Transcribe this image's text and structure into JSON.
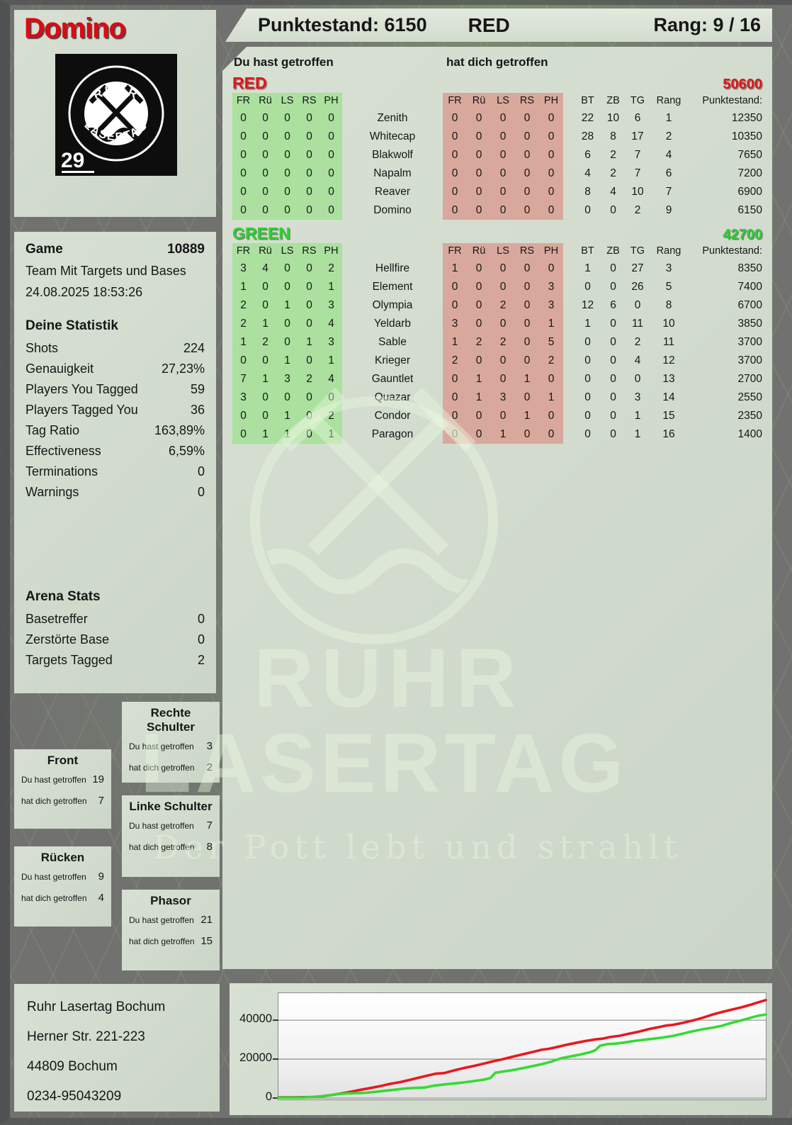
{
  "header": {
    "player_name": "Domino",
    "score_label": "Punktestand: 6150",
    "team": "RED",
    "rank_label": "Rang: 9 / 16"
  },
  "logo": {
    "arc_top": "RUHR",
    "arc_bottom": "LASERTAG",
    "badge": "29"
  },
  "game": {
    "label": "Game",
    "number": "10889",
    "mode": "Team Mit Targets und Bases",
    "datetime": "24.08.2025 18:53:26"
  },
  "your_stats": {
    "title": "Deine Statistik",
    "rows": [
      {
        "label": "Shots",
        "value": "224"
      },
      {
        "label": "Genauigkeit",
        "value": "27,23%"
      },
      {
        "label": "Players You Tagged",
        "value": "59"
      },
      {
        "label": "Players Tagged You",
        "value": "36"
      },
      {
        "label": "Tag Ratio",
        "value": "163,89%"
      },
      {
        "label": "Effectiveness",
        "value": "6,59%"
      },
      {
        "label": "Terminations",
        "value": "0"
      },
      {
        "label": "Warnings",
        "value": "0"
      }
    ]
  },
  "arena_stats": {
    "title": "Arena Stats",
    "rows": [
      {
        "label": "Basetreffer",
        "value": "0"
      },
      {
        "label": "Zerstörte Base",
        "value": "0"
      },
      {
        "label": "Targets Tagged",
        "value": "2"
      }
    ]
  },
  "zones": {
    "hit_label": "Du hast getroffen",
    "got_label": "hat dich getroffen",
    "boxes": [
      {
        "id": "front",
        "title": "Front",
        "hit": "19",
        "got": "7"
      },
      {
        "id": "ruecken",
        "title": "Rücken",
        "hit": "9",
        "got": "4"
      },
      {
        "id": "rechte-schulter",
        "title": "Rechte Schulter",
        "hit": "3",
        "got": "2"
      },
      {
        "id": "linke-schulter",
        "title": "Linke Schulter",
        "hit": "7",
        "got": "8"
      },
      {
        "id": "phasor",
        "title": "Phasor",
        "hit": "21",
        "got": "15"
      }
    ]
  },
  "score_table": {
    "hit_label": "Du hast getroffen",
    "got_label": "hat dich getroffen",
    "hit_bg": "#abe09e",
    "got_bg": "#d9a89c",
    "hit_columns": [
      "FR",
      "Rü",
      "LS",
      "RS",
      "PH"
    ],
    "got_columns": [
      "FR",
      "Rü",
      "LS",
      "RS",
      "PH"
    ],
    "stat_columns": [
      "BT",
      "ZB",
      "TG",
      "Rang",
      "Punktestand:"
    ],
    "teams": [
      {
        "name": "RED",
        "total": "50600",
        "color": "#e8121a",
        "rows": [
          {
            "player": "Zenith",
            "hit": [
              "0",
              "0",
              "0",
              "0",
              "0"
            ],
            "got": [
              "0",
              "0",
              "0",
              "0",
              "0"
            ],
            "bt": "22",
            "zb": "10",
            "tg": "6",
            "rang": "1",
            "punktestand": "12350"
          },
          {
            "player": "Whitecap",
            "hit": [
              "0",
              "0",
              "0",
              "0",
              "0"
            ],
            "got": [
              "0",
              "0",
              "0",
              "0",
              "0"
            ],
            "bt": "28",
            "zb": "8",
            "tg": "17",
            "rang": "2",
            "punktestand": "10350"
          },
          {
            "player": "Blakwolf",
            "hit": [
              "0",
              "0",
              "0",
              "0",
              "0"
            ],
            "got": [
              "0",
              "0",
              "0",
              "0",
              "0"
            ],
            "bt": "6",
            "zb": "2",
            "tg": "7",
            "rang": "4",
            "punktestand": "7650"
          },
          {
            "player": "Napalm",
            "hit": [
              "0",
              "0",
              "0",
              "0",
              "0"
            ],
            "got": [
              "0",
              "0",
              "0",
              "0",
              "0"
            ],
            "bt": "4",
            "zb": "2",
            "tg": "7",
            "rang": "6",
            "punktestand": "7200"
          },
          {
            "player": "Reaver",
            "hit": [
              "0",
              "0",
              "0",
              "0",
              "0"
            ],
            "got": [
              "0",
              "0",
              "0",
              "0",
              "0"
            ],
            "bt": "8",
            "zb": "4",
            "tg": "10",
            "rang": "7",
            "punktestand": "6900"
          },
          {
            "player": "Domino",
            "hit": [
              "0",
              "0",
              "0",
              "0",
              "0"
            ],
            "got": [
              "0",
              "0",
              "0",
              "0",
              "0"
            ],
            "bt": "0",
            "zb": "0",
            "tg": "2",
            "rang": "9",
            "punktestand": "6150"
          }
        ]
      },
      {
        "name": "GREEN",
        "total": "42700",
        "color": "#2bd22b",
        "rows": [
          {
            "player": "Hellfire",
            "hit": [
              "3",
              "4",
              "0",
              "0",
              "2"
            ],
            "got": [
              "1",
              "0",
              "0",
              "0",
              "0"
            ],
            "bt": "1",
            "zb": "0",
            "tg": "27",
            "rang": "3",
            "punktestand": "8350"
          },
          {
            "player": "Element",
            "hit": [
              "1",
              "0",
              "0",
              "0",
              "1"
            ],
            "got": [
              "0",
              "0",
              "0",
              "0",
              "3"
            ],
            "bt": "0",
            "zb": "0",
            "tg": "26",
            "rang": "5",
            "punktestand": "7400"
          },
          {
            "player": "Olympia",
            "hit": [
              "2",
              "0",
              "1",
              "0",
              "3"
            ],
            "got": [
              "0",
              "0",
              "2",
              "0",
              "3"
            ],
            "bt": "12",
            "zb": "6",
            "tg": "0",
            "rang": "8",
            "punktestand": "6700"
          },
          {
            "player": "Yeldarb",
            "hit": [
              "2",
              "1",
              "0",
              "0",
              "4"
            ],
            "got": [
              "3",
              "0",
              "0",
              "0",
              "1"
            ],
            "bt": "1",
            "zb": "0",
            "tg": "11",
            "rang": "10",
            "punktestand": "3850"
          },
          {
            "player": "Sable",
            "hit": [
              "1",
              "2",
              "0",
              "1",
              "3"
            ],
            "got": [
              "1",
              "2",
              "2",
              "0",
              "5"
            ],
            "bt": "0",
            "zb": "0",
            "tg": "2",
            "rang": "11",
            "punktestand": "3700"
          },
          {
            "player": "Krieger",
            "hit": [
              "0",
              "0",
              "1",
              "0",
              "1"
            ],
            "got": [
              "2",
              "0",
              "0",
              "0",
              "2"
            ],
            "bt": "0",
            "zb": "0",
            "tg": "4",
            "rang": "12",
            "punktestand": "3700"
          },
          {
            "player": "Gauntlet",
            "hit": [
              "7",
              "1",
              "3",
              "2",
              "4"
            ],
            "got": [
              "0",
              "1",
              "0",
              "1",
              "0"
            ],
            "bt": "0",
            "zb": "0",
            "tg": "0",
            "rang": "13",
            "punktestand": "2700"
          },
          {
            "player": "Quazar",
            "hit": [
              "3",
              "0",
              "0",
              "0",
              "0"
            ],
            "got": [
              "0",
              "1",
              "3",
              "0",
              "1"
            ],
            "bt": "0",
            "zb": "0",
            "tg": "3",
            "rang": "14",
            "punktestand": "2550"
          },
          {
            "player": "Condor",
            "hit": [
              "0",
              "0",
              "1",
              "0",
              "2"
            ],
            "got": [
              "0",
              "0",
              "0",
              "1",
              "0"
            ],
            "bt": "0",
            "zb": "0",
            "tg": "1",
            "rang": "15",
            "punktestand": "2350"
          },
          {
            "player": "Paragon",
            "hit": [
              "0",
              "1",
              "1",
              "0",
              "1"
            ],
            "got": [
              "0",
              "0",
              "1",
              "0",
              "0"
            ],
            "bt": "0",
            "zb": "0",
            "tg": "1",
            "rang": "16",
            "punktestand": "1400"
          }
        ]
      }
    ]
  },
  "watermark": {
    "line1": "RUHR",
    "line2": "LASERTAG",
    "tagline": "Der Pott lebt und strahlt"
  },
  "address": {
    "lines": [
      "Ruhr Lasertag Bochum",
      "Herner Str. 221-223",
      "44809 Bochum",
      "0234-95043209"
    ]
  },
  "chart_data": {
    "type": "line",
    "title": "",
    "xlabel": "",
    "ylabel": "",
    "ylim": [
      0,
      53500
    ],
    "yticks": [
      40000,
      20000,
      0
    ],
    "grid": true,
    "legend": "none",
    "series": [
      {
        "name": "RED",
        "color": "#e8181f",
        "points": [
          [
            0,
            400
          ],
          [
            0.04,
            400
          ],
          [
            0.07,
            500
          ],
          [
            0.09,
            900
          ],
          [
            0.11,
            1600
          ],
          [
            0.13,
            2400
          ],
          [
            0.15,
            3300
          ],
          [
            0.17,
            4300
          ],
          [
            0.19,
            5200
          ],
          [
            0.21,
            6200
          ],
          [
            0.23,
            7300
          ],
          [
            0.25,
            8200
          ],
          [
            0.27,
            9400
          ],
          [
            0.29,
            10600
          ],
          [
            0.31,
            11800
          ],
          [
            0.325,
            12600
          ],
          [
            0.34,
            12800
          ],
          [
            0.36,
            14200
          ],
          [
            0.38,
            15400
          ],
          [
            0.4,
            16400
          ],
          [
            0.42,
            17600
          ],
          [
            0.44,
            18800
          ],
          [
            0.46,
            19900
          ],
          [
            0.48,
            21200
          ],
          [
            0.5,
            22400
          ],
          [
            0.52,
            23600
          ],
          [
            0.54,
            24800
          ],
          [
            0.555,
            25300
          ],
          [
            0.57,
            26100
          ],
          [
            0.59,
            27300
          ],
          [
            0.61,
            28300
          ],
          [
            0.63,
            29300
          ],
          [
            0.65,
            30100
          ],
          [
            0.665,
            30500
          ],
          [
            0.68,
            31300
          ],
          [
            0.7,
            32000
          ],
          [
            0.72,
            33100
          ],
          [
            0.74,
            34100
          ],
          [
            0.76,
            35400
          ],
          [
            0.78,
            36400
          ],
          [
            0.795,
            37200
          ],
          [
            0.81,
            37600
          ],
          [
            0.83,
            38600
          ],
          [
            0.85,
            39800
          ],
          [
            0.87,
            41200
          ],
          [
            0.89,
            42800
          ],
          [
            0.91,
            44200
          ],
          [
            0.93,
            45400
          ],
          [
            0.95,
            46600
          ],
          [
            0.97,
            48000
          ],
          [
            0.985,
            49200
          ],
          [
            1,
            50300
          ]
        ]
      },
      {
        "name": "GREEN",
        "color": "#35da35",
        "points": [
          [
            0,
            250
          ],
          [
            0.05,
            250
          ],
          [
            0.08,
            700
          ],
          [
            0.1,
            1300
          ],
          [
            0.12,
            2000
          ],
          [
            0.14,
            2400
          ],
          [
            0.16,
            2500
          ],
          [
            0.18,
            2700
          ],
          [
            0.2,
            3200
          ],
          [
            0.22,
            3800
          ],
          [
            0.24,
            4300
          ],
          [
            0.26,
            4900
          ],
          [
            0.28,
            5200
          ],
          [
            0.3,
            5400
          ],
          [
            0.32,
            6400
          ],
          [
            0.34,
            7000
          ],
          [
            0.36,
            7500
          ],
          [
            0.38,
            8000
          ],
          [
            0.4,
            8700
          ],
          [
            0.42,
            9400
          ],
          [
            0.435,
            10300
          ],
          [
            0.445,
            13000
          ],
          [
            0.46,
            13600
          ],
          [
            0.48,
            14300
          ],
          [
            0.5,
            15300
          ],
          [
            0.52,
            16300
          ],
          [
            0.54,
            17400
          ],
          [
            0.56,
            18700
          ],
          [
            0.58,
            20400
          ],
          [
            0.6,
            21400
          ],
          [
            0.62,
            22400
          ],
          [
            0.64,
            23600
          ],
          [
            0.65,
            24500
          ],
          [
            0.66,
            26900
          ],
          [
            0.675,
            27700
          ],
          [
            0.69,
            27900
          ],
          [
            0.71,
            28500
          ],
          [
            0.73,
            29300
          ],
          [
            0.75,
            29900
          ],
          [
            0.77,
            30500
          ],
          [
            0.79,
            31100
          ],
          [
            0.81,
            31900
          ],
          [
            0.83,
            33100
          ],
          [
            0.85,
            34300
          ],
          [
            0.87,
            35300
          ],
          [
            0.89,
            36100
          ],
          [
            0.91,
            37100
          ],
          [
            0.93,
            38600
          ],
          [
            0.95,
            39900
          ],
          [
            0.97,
            41300
          ],
          [
            0.985,
            42300
          ],
          [
            1,
            42900
          ]
        ]
      }
    ]
  }
}
